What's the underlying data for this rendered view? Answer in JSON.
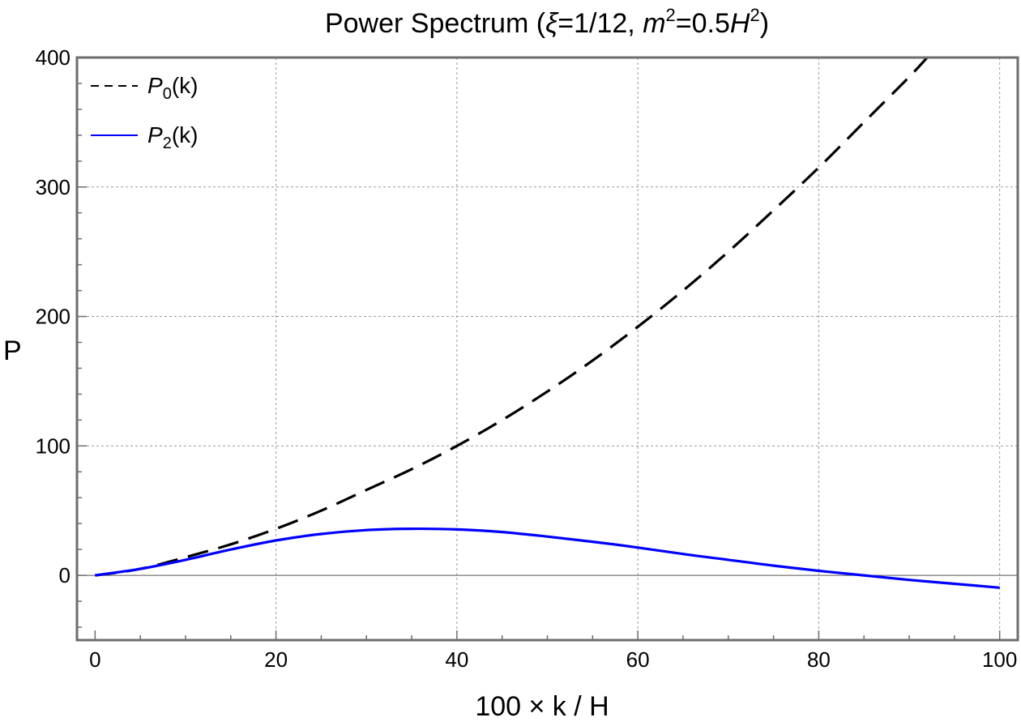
{
  "chart_data": {
    "type": "line",
    "title": "Power Spectrum (ξ=1/12, m²=0.5H²)",
    "title_parts": {
      "prefix": "Power Spectrum (",
      "xi": "ξ",
      "xi_value": "=1/12, ",
      "m": "m",
      "sup1": "2",
      "mid": "=0.5",
      "H": "H",
      "sup2": "2",
      "suffix": ")"
    },
    "xlabel": "100 × k / H",
    "ylabel": "P",
    "xlim": [
      -2,
      102
    ],
    "ylim": [
      -50,
      400
    ],
    "xticks": [
      0,
      20,
      40,
      60,
      80,
      100
    ],
    "yticks": [
      0,
      100,
      200,
      300,
      400
    ],
    "grid": true,
    "legend_position": "top-left",
    "series": [
      {
        "name": "P0(k)",
        "legend": {
          "symbol": "P",
          "sub": "0",
          "suffix": "(k)"
        },
        "color": "#000000",
        "style": "dashed",
        "x": [
          0,
          5,
          10,
          15,
          20,
          25,
          30,
          35,
          40,
          45,
          50,
          55,
          60,
          65,
          70,
          75,
          80,
          85,
          90,
          92.5
        ],
        "y": [
          0,
          5,
          14,
          24,
          36,
          50,
          66,
          82,
          100,
          120,
          142,
          166,
          192,
          220,
          250,
          282,
          315,
          350,
          385,
          404
        ]
      },
      {
        "name": "P2(k)",
        "legend": {
          "symbol": "P",
          "sub": "2",
          "suffix": "(k)"
        },
        "color": "#0000ff",
        "style": "solid",
        "x": [
          0,
          5,
          10,
          15,
          20,
          25,
          30,
          35,
          40,
          45,
          50,
          55,
          60,
          65,
          70,
          75,
          80,
          85,
          90,
          95,
          100
        ],
        "y": [
          0,
          5,
          12,
          20,
          27,
          32,
          35,
          36,
          35.5,
          33.5,
          30,
          26,
          21.5,
          16.5,
          12,
          7.5,
          3.5,
          0,
          -3.5,
          -6.5,
          -9.5
        ]
      }
    ]
  }
}
